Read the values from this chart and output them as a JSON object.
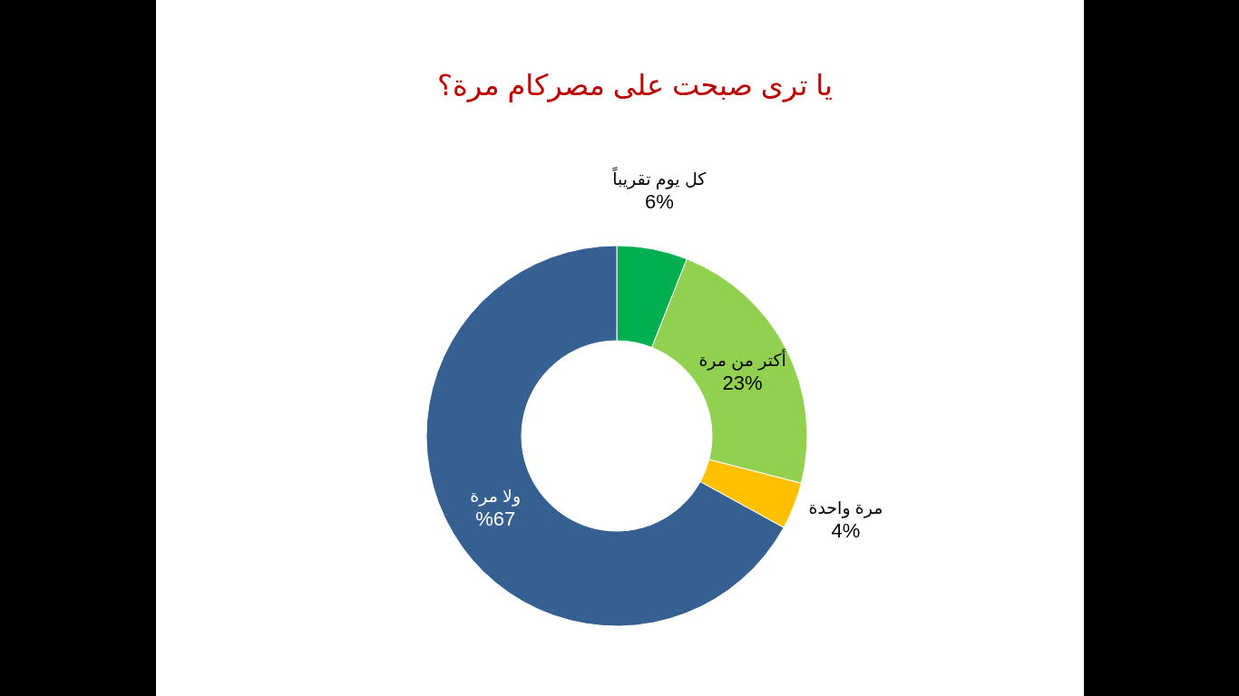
{
  "chart_data": {
    "type": "donut",
    "title": "يا ترى صبحت على مصركام مرة؟",
    "categories": [
      "كل يوم تقريباً",
      "أكتر من مرة",
      "مرة واحدة",
      "ولا مرة"
    ],
    "values": [
      6,
      23,
      4,
      67
    ],
    "colors": [
      "#00b050",
      "#92d050",
      "#ffc000",
      "#376092"
    ],
    "value_labels": [
      "6%",
      "23%",
      "4%",
      "%67"
    ]
  }
}
